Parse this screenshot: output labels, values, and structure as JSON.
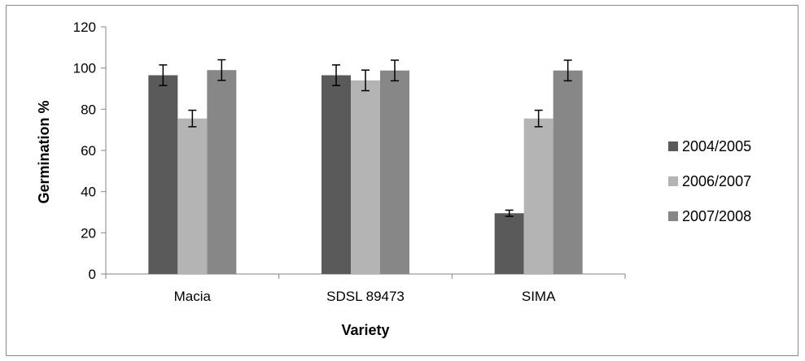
{
  "chart_data": {
    "type": "bar",
    "title": "",
    "xlabel": "Variety",
    "ylabel": "Germination %",
    "categories": [
      "Macia",
      "SDSL 89473",
      "SIMA"
    ],
    "series": [
      {
        "name": "2004/2005",
        "color": "#5a5a5a",
        "values": [
          96.5,
          96.5,
          29.5
        ],
        "errors": [
          5,
          5,
          1.5
        ]
      },
      {
        "name": "2006/2007",
        "color": "#b4b4b4",
        "values": [
          75.5,
          94,
          75.5
        ],
        "errors": [
          4,
          5,
          4
        ]
      },
      {
        "name": "2007/2008",
        "color": "#878787",
        "values": [
          99,
          98.8,
          98.8
        ],
        "errors": [
          5,
          5,
          5
        ]
      }
    ],
    "ylim": [
      0,
      120
    ],
    "yticks": [
      0,
      20,
      40,
      60,
      80,
      100,
      120
    ],
    "grid": false,
    "legend_position": "right"
  }
}
